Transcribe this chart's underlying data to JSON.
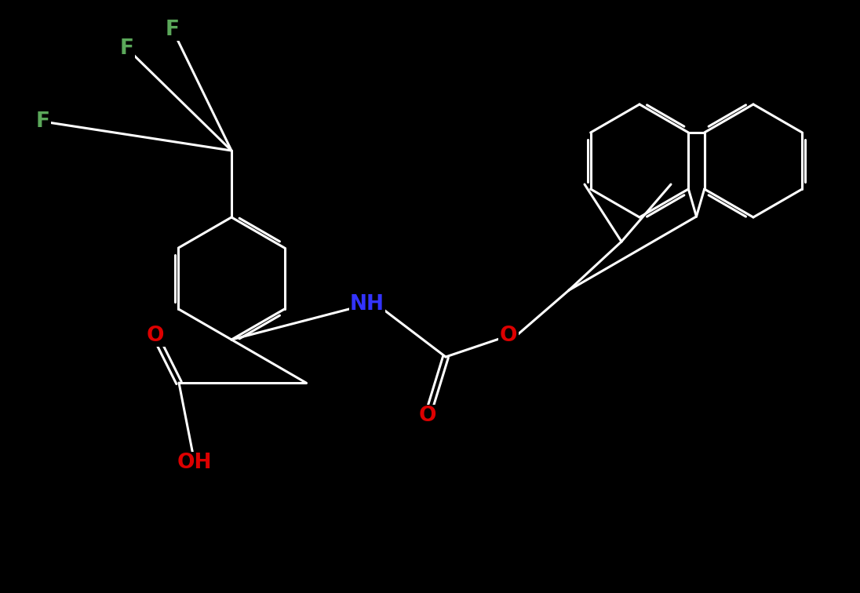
{
  "background_color": "#000000",
  "bond_color": "#ffffff",
  "atom_colors": {
    "F": "#5ba85a",
    "O": "#dd0000",
    "N": "#3333ff",
    "C": "#ffffff"
  },
  "lw": 2.2,
  "fontsize": 19,
  "fig_width": 10.96,
  "fig_height": 7.56,
  "dpi": 100
}
